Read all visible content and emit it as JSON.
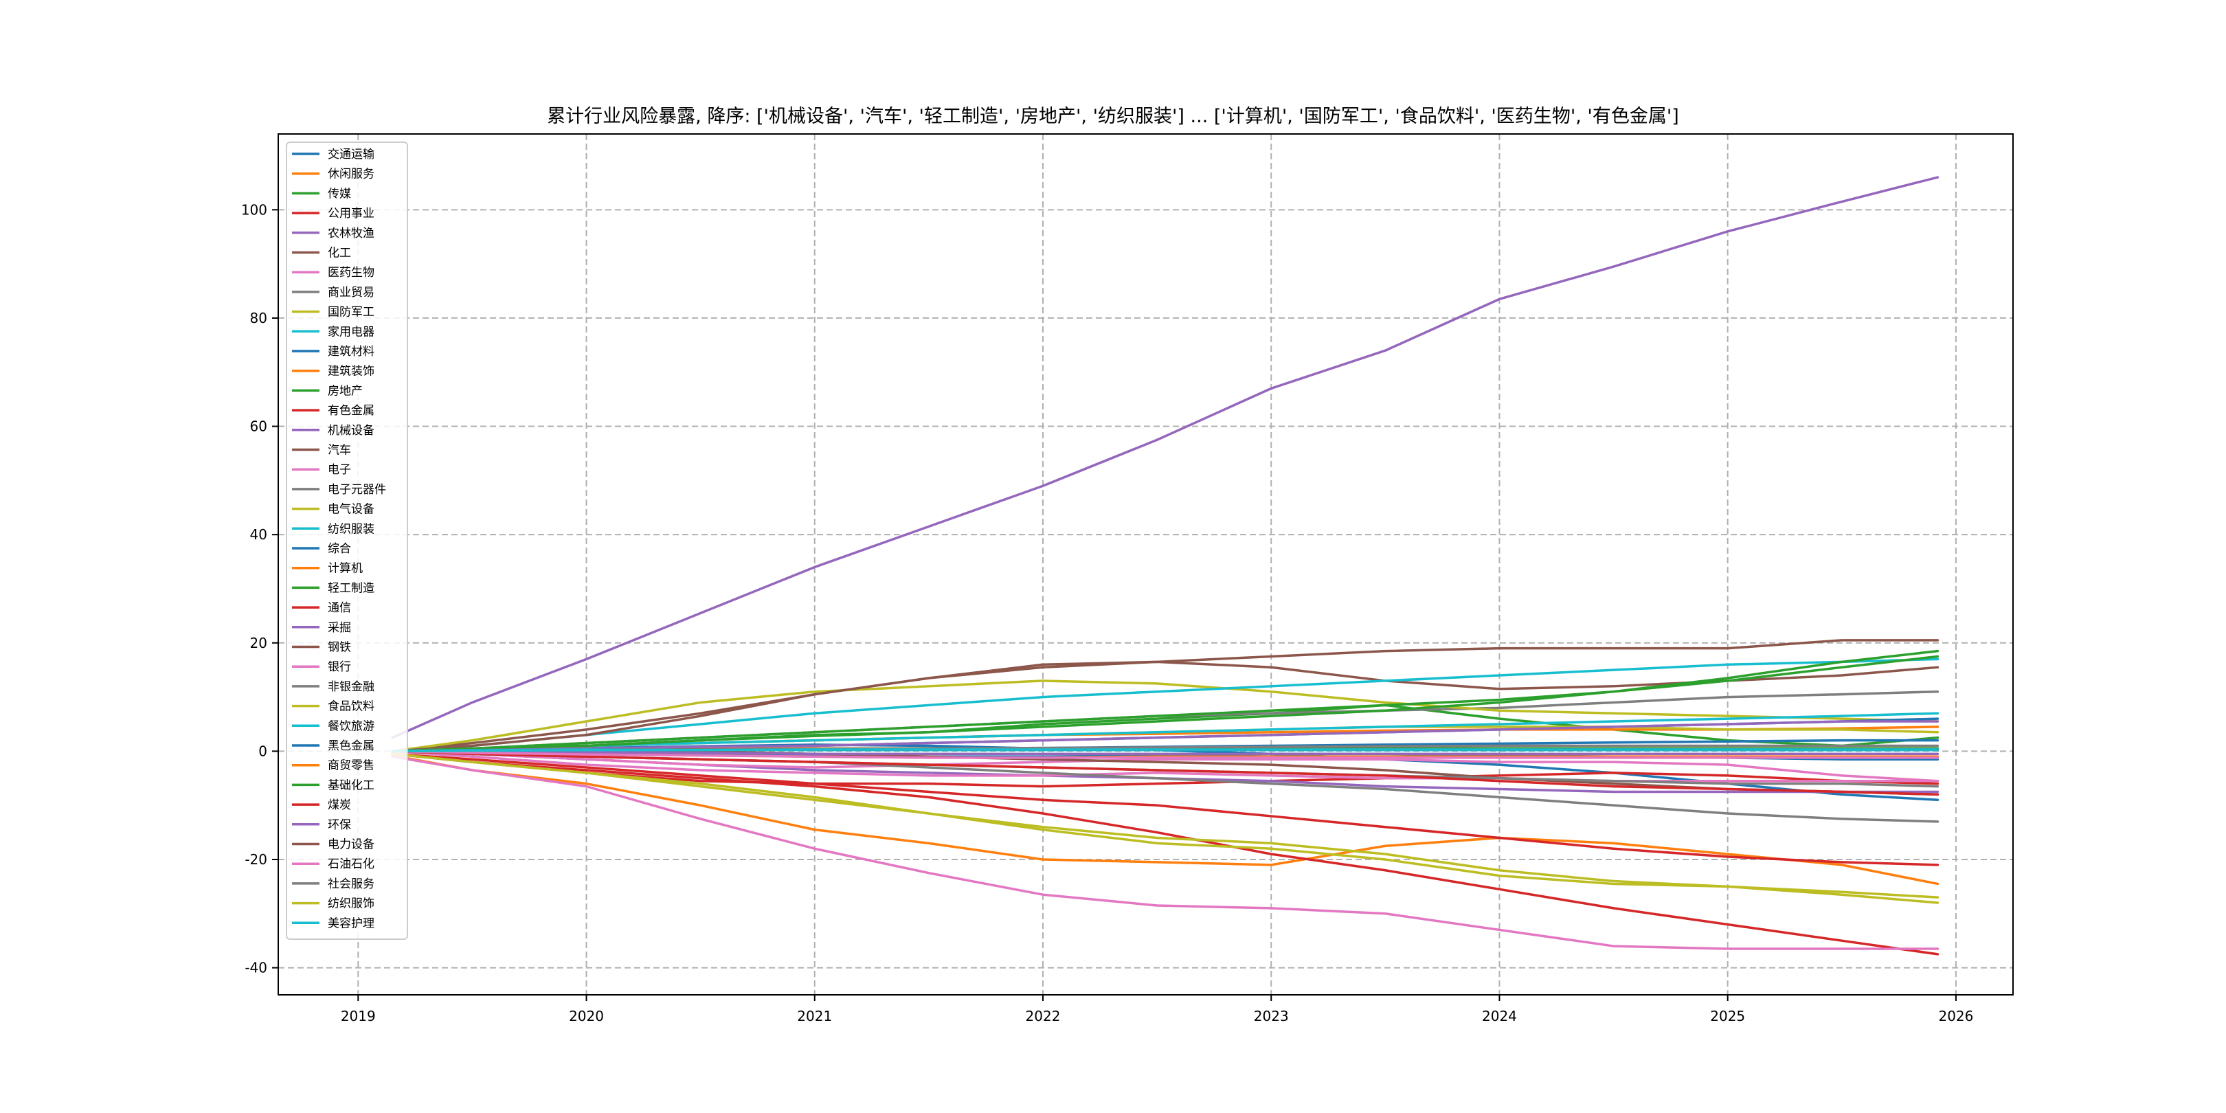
{
  "chart_data": {
    "type": "line",
    "title": "累计行业风险暴露, 降序: ['机械设备', '汽车', '轻工制造', '房地产', '纺织服装'] ... ['计算机', '国防军工', '食品饮料', '医药生物', '有色金属']",
    "xlabel": "",
    "ylabel": "",
    "xlim": [
      2018.65,
      2026.25
    ],
    "ylim": [
      -45,
      114
    ],
    "x_ticks": [
      "2019",
      "2020",
      "2021",
      "2022",
      "2023",
      "2024",
      "2025",
      "2026"
    ],
    "y_ticks": [
      "-40",
      "-20",
      "0",
      "20",
      "40",
      "60",
      "80",
      "100"
    ],
    "grid": true,
    "legend_position": "upper-left",
    "x_points": [
      2019.15,
      2019.5,
      2020.0,
      2020.5,
      2021.0,
      2021.5,
      2022.0,
      2022.5,
      2023.0,
      2023.5,
      2024.0,
      2024.5,
      2025.0,
      2025.5,
      2025.92
    ],
    "series": [
      {
        "name": "交通运输",
        "color": "#1f77b4",
        "values": [
          0,
          0.3,
          0.6,
          0.9,
          1.2,
          1.0,
          0.5,
          0.2,
          -0.5,
          -1.5,
          -2.5,
          -4.0,
          -6.0,
          -8.0,
          -9.0
        ]
      },
      {
        "name": "休闲服务",
        "color": "#ff7f0e",
        "values": [
          -0.8,
          -3.5,
          -6.0,
          -10.0,
          -14.5,
          -17.0,
          -20.0,
          -20.5,
          -21.0,
          -17.5,
          -16.0,
          -17.0,
          -19.0,
          -21.0,
          -24.5
        ]
      },
      {
        "name": "传媒",
        "color": "#2ca02c",
        "values": [
          0,
          0.5,
          1.0,
          2.0,
          2.8,
          3.5,
          5.0,
          6.0,
          7.0,
          8.5,
          6.0,
          4.0,
          2.0,
          1.0,
          2.5
        ]
      },
      {
        "name": "公用事业",
        "color": "#d62728",
        "values": [
          -0.5,
          -2.0,
          -4.0,
          -5.5,
          -6.0,
          -6.0,
          -6.5,
          -6.0,
          -5.5,
          -5.0,
          -4.5,
          -4.0,
          -4.5,
          -5.5,
          -6.0
        ]
      },
      {
        "name": "农林牧渔",
        "color": "#9467bd",
        "values": [
          0,
          -0.5,
          -1.5,
          -2.5,
          -3.5,
          -4.0,
          -4.5,
          -5.0,
          -5.5,
          -6.5,
          -7.0,
          -7.5,
          -7.5,
          -7.5,
          -7.5
        ]
      },
      {
        "name": "化工",
        "color": "#8c564b",
        "values": [
          0,
          1.5,
          4.0,
          7.0,
          10.5,
          13.5,
          15.5,
          16.5,
          15.5,
          13.0,
          11.5,
          12.0,
          13.0,
          14.0,
          15.5
        ]
      },
      {
        "name": "医药生物",
        "color": "#e377c2",
        "values": [
          0,
          -0.5,
          -1.5,
          -2.5,
          -3.0,
          -2.5,
          -2.0,
          -1.5,
          -1.5,
          -1.5,
          -2.0,
          -2.0,
          -2.5,
          -4.5,
          -5.5
        ]
      },
      {
        "name": "商业贸易",
        "color": "#7f7f7f",
        "values": [
          0,
          0.5,
          1.5,
          2.5,
          3.5,
          4.5,
          5.5,
          6.5,
          7.0,
          7.5,
          8.0,
          9.0,
          10.0,
          10.5,
          11.0
        ]
      },
      {
        "name": "国防军工",
        "color": "#bcbd22",
        "values": [
          0,
          2.0,
          5.5,
          9.0,
          11.0,
          12.0,
          13.0,
          12.5,
          11.0,
          9.0,
          7.5,
          7.0,
          6.5,
          6.0,
          5.5
        ]
      },
      {
        "name": "家用电器",
        "color": "#17becf",
        "values": [
          0,
          1.0,
          3.0,
          5.0,
          7.0,
          8.5,
          10.0,
          11.0,
          12.0,
          13.0,
          14.0,
          15.0,
          16.0,
          16.5,
          17.0
        ]
      },
      {
        "name": "建筑材料",
        "color": "#1f77b4",
        "values": [
          0,
          0.2,
          0.5,
          0.8,
          1.0,
          1.5,
          2.0,
          2.5,
          3.0,
          3.5,
          4.0,
          4.5,
          5.0,
          5.5,
          6.0
        ]
      },
      {
        "name": "建筑装饰",
        "color": "#ff7f0e",
        "values": [
          0,
          0.5,
          1.0,
          1.5,
          2.0,
          2.5,
          3.0,
          3.2,
          3.5,
          3.8,
          4.0,
          4.0,
          4.0,
          4.2,
          4.5
        ]
      },
      {
        "name": "房地产",
        "color": "#2ca02c",
        "values": [
          0,
          0.5,
          1.5,
          2.5,
          3.5,
          4.5,
          5.5,
          6.5,
          7.5,
          8.5,
          9.5,
          11.0,
          13.5,
          16.5,
          18.5
        ]
      },
      {
        "name": "有色金属",
        "color": "#d62728",
        "values": [
          -0.5,
          -2.0,
          -3.5,
          -5.0,
          -6.5,
          -8.5,
          -11.5,
          -15.0,
          -19.0,
          -22.0,
          -25.5,
          -29.0,
          -32.0,
          -35.0,
          -37.5
        ]
      },
      {
        "name": "机械设备",
        "color": "#9467bd",
        "values": [
          2.5,
          9.0,
          17.0,
          25.5,
          34.0,
          41.5,
          49.0,
          57.5,
          67.0,
          74.0,
          83.5,
          89.5,
          96.0,
          101.5,
          106.0
        ]
      },
      {
        "name": "汽车",
        "color": "#8c564b",
        "values": [
          0,
          1.0,
          3.0,
          6.5,
          10.5,
          13.5,
          16.0,
          16.5,
          17.5,
          18.5,
          19.0,
          19.0,
          19.0,
          20.5,
          20.5
        ]
      },
      {
        "name": "电子",
        "color": "#e377c2",
        "values": [
          0,
          -1.0,
          -2.5,
          -3.5,
          -4.0,
          -4.5,
          -4.5,
          -4.0,
          -4.5,
          -5.0,
          -5.0,
          -5.5,
          -5.5,
          -5.5,
          -5.5
        ]
      },
      {
        "name": "电子元器件",
        "color": "#7f7f7f",
        "values": [
          0,
          -0.5,
          -1.0,
          -1.5,
          -2.0,
          -3.0,
          -4.0,
          -5.0,
          -6.0,
          -7.0,
          -8.5,
          -10.0,
          -11.5,
          -12.5,
          -13.0
        ]
      },
      {
        "name": "电气设备",
        "color": "#bcbd22",
        "values": [
          0,
          0.5,
          1.0,
          1.5,
          2.0,
          2.5,
          3.0,
          3.5,
          4.0,
          4.5,
          4.5,
          4.5,
          4.0,
          4.0,
          3.5
        ]
      },
      {
        "name": "纺织服装",
        "color": "#17becf",
        "values": [
          0,
          0.5,
          1.0,
          1.5,
          2.0,
          2.5,
          3.0,
          3.5,
          4.0,
          4.5,
          5.0,
          5.5,
          6.0,
          6.5,
          7.0
        ]
      },
      {
        "name": "综合",
        "color": "#1f77b4",
        "values": [
          0,
          0,
          -0.3,
          -0.5,
          -0.8,
          -1.0,
          -1.0,
          -0.8,
          -0.5,
          -0.5,
          -0.8,
          -1.0,
          -1.2,
          -1.5,
          -1.5
        ]
      },
      {
        "name": "计算机",
        "color": "#ff7f0e",
        "values": [
          0,
          0.3,
          0.5,
          0.5,
          0.5,
          0.5,
          0.5,
          0.5,
          0.3,
          0.3,
          0.3,
          0.3,
          0.3,
          0.3,
          0.3
        ]
      },
      {
        "name": "轻工制造",
        "color": "#2ca02c",
        "values": [
          0,
          0.5,
          1.0,
          2.0,
          3.0,
          3.5,
          4.5,
          5.5,
          6.5,
          7.5,
          9.0,
          11.0,
          13.0,
          15.5,
          17.5
        ]
      },
      {
        "name": "通信",
        "color": "#d62728",
        "values": [
          -0.5,
          -1.5,
          -3.0,
          -4.5,
          -6.0,
          -7.5,
          -9.0,
          -10.0,
          -12.0,
          -14.0,
          -16.0,
          -18.0,
          -19.5,
          -20.5,
          -21.0
        ]
      },
      {
        "name": "采掘",
        "color": "#9467bd",
        "values": [
          0,
          0.2,
          0.5,
          0.8,
          1.0,
          1.5,
          2.0,
          2.5,
          3.0,
          3.5,
          4.0,
          4.5,
          5.0,
          5.5,
          5.5
        ]
      },
      {
        "name": "钢铁",
        "color": "#8c564b",
        "values": [
          0,
          0.2,
          0.3,
          0.0,
          -0.5,
          -1.0,
          -1.5,
          -2.0,
          -2.5,
          -3.5,
          -5.0,
          -6.0,
          -7.0,
          -7.5,
          -8.0
        ]
      },
      {
        "name": "银行",
        "color": "#e377c2",
        "values": [
          -1.0,
          -3.5,
          -6.5,
          -12.5,
          -18.0,
          -22.5,
          -26.5,
          -28.5,
          -29.0,
          -30.0,
          -33.0,
          -36.0,
          -36.5,
          -36.5,
          -36.5
        ]
      },
      {
        "name": "非银金融",
        "color": "#7f7f7f",
        "values": [
          0,
          -0.5,
          -1.0,
          -1.5,
          -2.0,
          -2.5,
          -3.0,
          -3.5,
          -4.0,
          -4.5,
          -5.0,
          -5.5,
          -6.0,
          -6.0,
          -6.5
        ]
      },
      {
        "name": "食品饮料",
        "color": "#bcbd22",
        "values": [
          -0.5,
          -2.0,
          -4.0,
          -6.0,
          -8.5,
          -11.5,
          -14.5,
          -17.0,
          -18.0,
          -20.0,
          -23.0,
          -24.5,
          -25.0,
          -26.0,
          -27.0
        ]
      },
      {
        "name": "餐饮旅游",
        "color": "#17becf",
        "values": [
          0,
          0.2,
          0.3,
          0.3,
          0.2,
          0.2,
          0.2,
          0.2,
          0.2,
          0.2,
          0.2,
          0.2,
          0.2,
          0.2,
          0.2
        ]
      },
      {
        "name": "黑色金属",
        "color": "#1f77b4",
        "values": [
          0,
          0.1,
          0.2,
          0.3,
          0.4,
          0.5,
          0.6,
          0.8,
          1.0,
          1.2,
          1.4,
          1.6,
          1.8,
          2.0,
          2.0
        ]
      },
      {
        "name": "商贸零售",
        "color": "#ff7f0e",
        "values": [
          0,
          -0.2,
          -0.5,
          -0.8,
          -1.0,
          -1.2,
          -1.2,
          -1.0,
          -1.0,
          -1.0,
          -1.0,
          -1.0,
          -1.0,
          -1.0,
          -1.0
        ]
      },
      {
        "name": "基础化工",
        "color": "#2ca02c",
        "values": [
          0,
          0.1,
          0.2,
          0.3,
          0.4,
          0.5,
          0.5,
          0.5,
          0.5,
          0.5,
          0.5,
          0.5,
          0.5,
          0.5,
          0.5
        ]
      },
      {
        "name": "煤炭",
        "color": "#d62728",
        "values": [
          0,
          -0.5,
          -1.0,
          -1.5,
          -2.0,
          -2.5,
          -3.0,
          -3.5,
          -4.0,
          -4.5,
          -5.5,
          -6.5,
          -7.0,
          -7.5,
          -8.0
        ]
      },
      {
        "name": "环保",
        "color": "#9467bd",
        "values": [
          0,
          0.0,
          -0.2,
          -0.3,
          -0.5,
          -0.5,
          -0.5,
          -0.5,
          -0.5,
          -0.5,
          -0.5,
          -0.5,
          -0.5,
          -0.5,
          -0.5
        ]
      },
      {
        "name": "电力设备",
        "color": "#8c564b",
        "values": [
          0,
          0.1,
          0.2,
          0.3,
          0.3,
          0.3,
          0.3,
          0.3,
          0.3,
          0.3,
          0.3,
          0.3,
          0.3,
          0.3,
          0.3
        ]
      },
      {
        "name": "石油石化",
        "color": "#e377c2",
        "values": [
          0,
          -0.3,
          -0.6,
          -0.8,
          -1.0,
          -1.2,
          -1.2,
          -1.2,
          -1.2,
          -1.2,
          -1.2,
          -1.2,
          -1.2,
          -1.2,
          -1.2
        ]
      },
      {
        "name": "社会服务",
        "color": "#7f7f7f",
        "values": [
          0,
          0.1,
          0.2,
          0.3,
          0.4,
          0.5,
          0.6,
          0.7,
          0.8,
          0.9,
          1.0,
          1.0,
          1.0,
          1.0,
          1.0
        ]
      },
      {
        "name": "纺织服饰",
        "color": "#bcbd22",
        "values": [
          -0.5,
          -2.0,
          -4.0,
          -6.5,
          -9.0,
          -11.5,
          -14.0,
          -16.0,
          -17.0,
          -19.0,
          -22.0,
          -24.0,
          -25.0,
          -26.5,
          -28.0
        ]
      },
      {
        "name": "美容护理",
        "color": "#17becf",
        "values": [
          0,
          0.1,
          0.2,
          0.2,
          0.3,
          0.3,
          0.3,
          0.3,
          0.3,
          0.3,
          0.3,
          0.3,
          0.3,
          0.3,
          0.3
        ]
      }
    ]
  }
}
